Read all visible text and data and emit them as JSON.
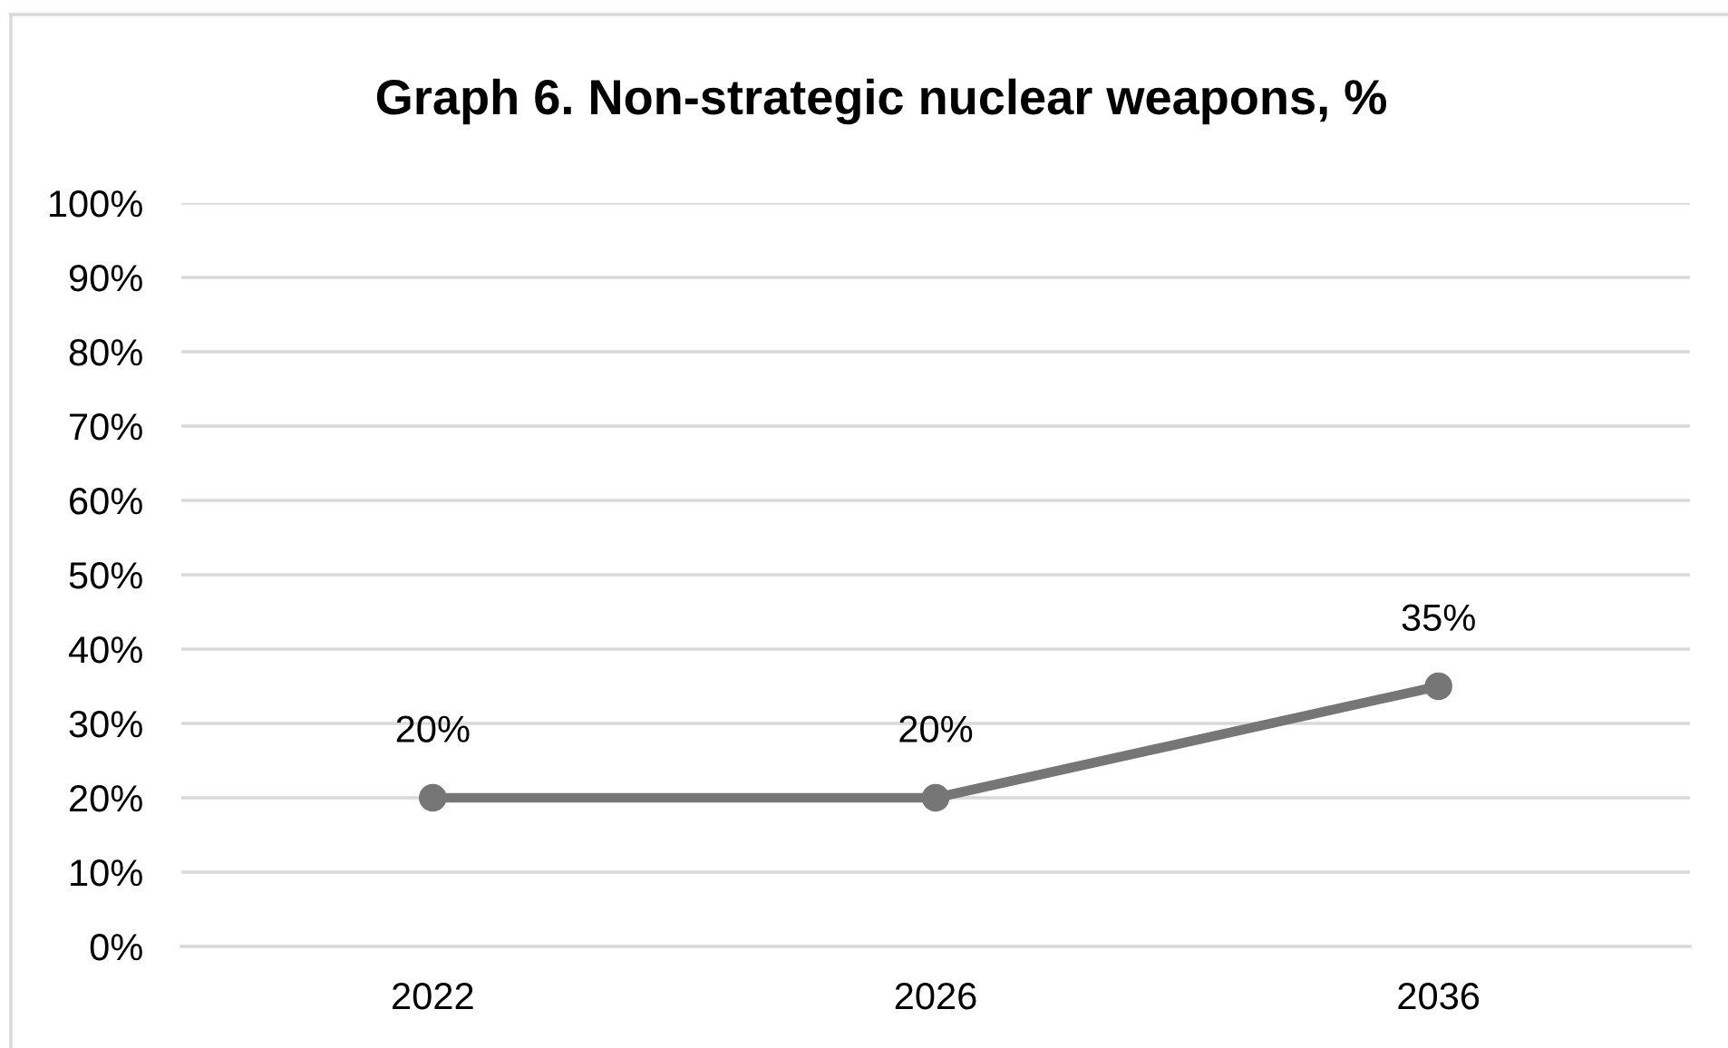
{
  "chart_data": {
    "type": "line",
    "title": "Graph 6. Non-strategic nuclear weapons, %",
    "categories": [
      "2022",
      "2026",
      "2036"
    ],
    "series": [
      {
        "color": "#767676",
        "values": [
          20,
          20,
          35
        ],
        "value_labels": [
          "20%",
          "20%",
          "35%"
        ]
      }
    ],
    "ylim": [
      0,
      100
    ],
    "yticks": [
      {
        "value": 0,
        "label": "0%"
      },
      {
        "value": 10,
        "label": "10%"
      },
      {
        "value": 20,
        "label": "20%"
      },
      {
        "value": 30,
        "label": "30%"
      },
      {
        "value": 40,
        "label": "40%"
      },
      {
        "value": 50,
        "label": "50%"
      },
      {
        "value": 60,
        "label": "60%"
      },
      {
        "value": 70,
        "label": "70%"
      },
      {
        "value": 80,
        "label": "80%"
      },
      {
        "value": 90,
        "label": "90%"
      },
      {
        "value": 100,
        "label": "100%"
      }
    ],
    "grid": "y",
    "marker": "circle",
    "line_style": "solid"
  }
}
